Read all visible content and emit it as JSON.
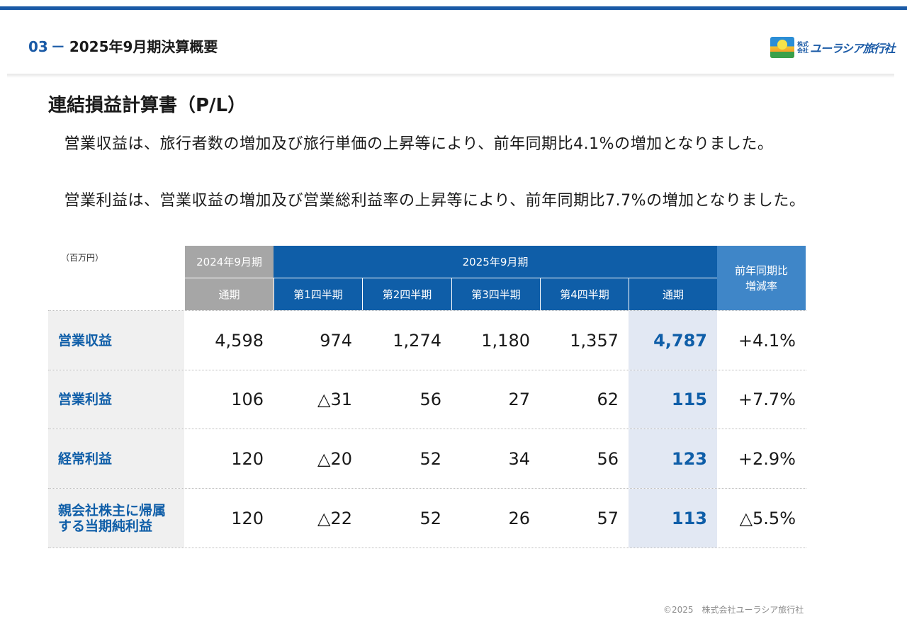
{
  "header": {
    "section_number": "03",
    "section_dash": "－",
    "section_title": "2025年9月期決算概要",
    "logo_small_top": "株式",
    "logo_small_bottom": "会社",
    "logo_text": "ユーラシア旅行社"
  },
  "colors": {
    "brand_blue": "#1a5aa6",
    "header_blue": "#0f5ea8",
    "header_gray": "#a6a6a6",
    "highlight": "#e2e8f3"
  },
  "page_title": "連結損益計算書（P/L）",
  "paragraphs": [
    "　営業収益は、旅行者数の増加及び旅行単価の上昇等により、前年同期比4.1%の増加となりました。",
    "　営業利益は、営業収益の増加及び営業総利益率の上昇等により、前年同期比7.7%の増加となりました。"
  ],
  "table": {
    "unit": "（百万円）",
    "header_prev_year": "2024年9月期",
    "header_curr_year": "2025年9月期",
    "header_change": "前年同期比\n増減率",
    "sub_headers": [
      "通期",
      "第1四半期",
      "第2四半期",
      "第3四半期",
      "第4四半期",
      "通期"
    ],
    "rows": [
      {
        "label": "営業収益",
        "values": [
          "4,598",
          "974",
          "1,274",
          "1,180",
          "1,357",
          "4,787",
          "+4.1%"
        ]
      },
      {
        "label": "営業利益",
        "values": [
          "106",
          "△31",
          "56",
          "27",
          "62",
          "115",
          "+7.7%"
        ]
      },
      {
        "label": "経常利益",
        "values": [
          "120",
          "△20",
          "52",
          "34",
          "56",
          "123",
          "+2.9%"
        ]
      },
      {
        "label": "親会社株主に帰属する当期純利益",
        "values": [
          "120",
          "△22",
          "52",
          "26",
          "57",
          "113",
          "△5.5%"
        ]
      }
    ]
  },
  "footer": {
    "copyright": "©2025",
    "company": "株式会社ユーラシア旅行社"
  }
}
